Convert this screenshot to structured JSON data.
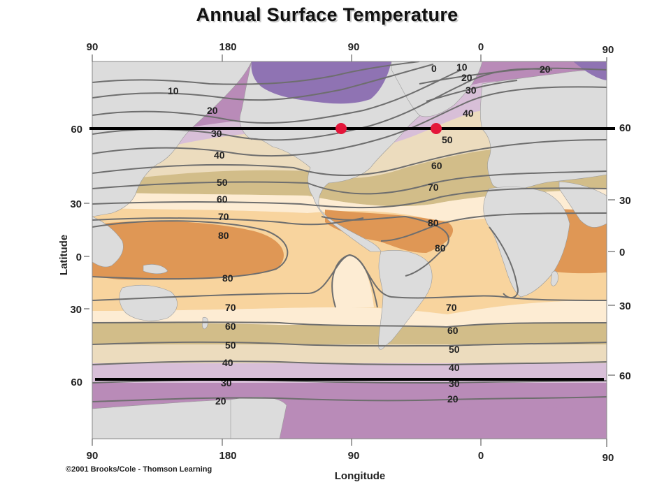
{
  "title": "Annual Surface Temperature",
  "credit": "©2001 Brooks/Cole - Thomson Learning",
  "x_axis_title": "Longitude",
  "y_axis_title": "Latitude",
  "top_longitude_ticks": [
    "90",
    "180",
    "90",
    "0",
    "90"
  ],
  "bottom_longitude_ticks": [
    "90",
    "180",
    "90",
    "0",
    "90"
  ],
  "left_latitude_ticks": [
    "60",
    "30",
    "0",
    "30",
    "60"
  ],
  "right_latitude_ticks": [
    "60",
    "30",
    "0",
    "30",
    "60"
  ],
  "isotherm_labels": {
    "north_pacific": [
      "10",
      "20",
      "30",
      "40",
      "50",
      "60",
      "70",
      "80"
    ],
    "south_pacific": [
      "80",
      "70",
      "60",
      "50",
      "40",
      "30",
      "20"
    ],
    "north_atlantic": [
      "0",
      "10",
      "20",
      "30",
      "40",
      "50",
      "60",
      "70",
      "80",
      "80"
    ],
    "south_atlantic": [
      "70",
      "60",
      "50",
      "40",
      "30",
      "20"
    ],
    "europe": [
      "20"
    ]
  },
  "reference_lines": [
    "60 N",
    "60 S"
  ],
  "markers": 2,
  "colors": {
    "land": "#dcdcdc",
    "band_cold": "#b98bb8",
    "band_cool": "#d8bfd8",
    "band_mild": "#ecdcbe",
    "band_temperate": "#d2bd89",
    "band_warm_light": "#fdecd3",
    "band_warm": "#f8d49e",
    "band_hot": "#df9755",
    "ice": "#8f73b3",
    "isotherm": "#6e6e6e",
    "reference_line": "#000000",
    "marker": "#e4163a"
  }
}
